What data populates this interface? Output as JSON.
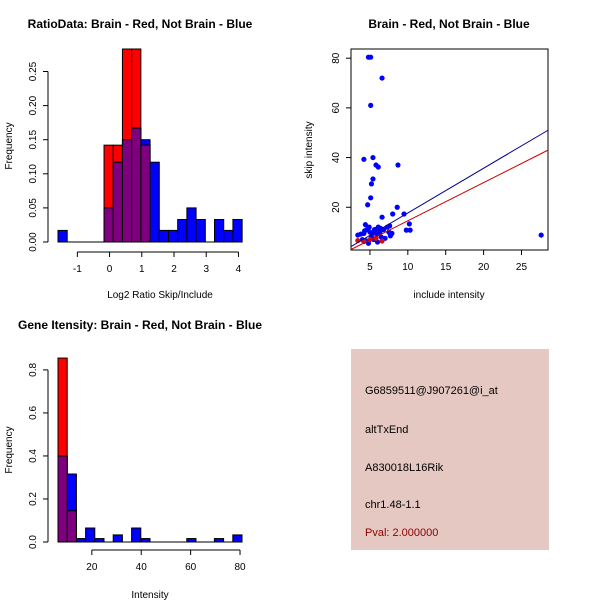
{
  "chart_data": [
    {
      "type": "bar",
      "title": "RatioData: Brain - Red, Not Brain - Blue",
      "xlabel": "Log2 Ratio Skip/Include",
      "ylabel": "Frequency",
      "xlim": [
        -1.6,
        4.11
      ],
      "ylim": [
        0,
        0.283
      ],
      "xticks": [
        -1,
        0,
        1,
        2,
        3,
        4
      ],
      "yticks": [
        0.0,
        0.05,
        0.1,
        0.15,
        0.2,
        0.25
      ],
      "ytick_labels": [
        "0.00",
        "0.05",
        "0.10",
        "0.15",
        "0.20",
        "0.25"
      ],
      "bin_start": -1.6,
      "bin_width": 0.2857,
      "series": [
        {
          "name": "Not Brain",
          "color": "#0000ff",
          "values": [
            0.017,
            0,
            0,
            0,
            0,
            0.05,
            0.117,
            0.15,
            0.167,
            0.15,
            0.117,
            0.017,
            0.017,
            0.033,
            0.05,
            0.033,
            0,
            0.033,
            0.017,
            0.033
          ]
        },
        {
          "name": "Brain",
          "color": "#ff0000",
          "values": [
            0,
            0,
            0,
            0,
            0,
            0.142,
            0.142,
            0.283,
            0.283,
            0.142,
            0,
            0,
            0,
            0,
            0,
            0,
            0,
            0,
            0,
            0
          ]
        }
      ],
      "overlap_color": "#7f007f"
    },
    {
      "type": "scatter",
      "title": "Brain - Red, Not Brain - Blue",
      "xlabel": "include intensity",
      "ylabel": "skip intensity",
      "xlim": [
        2.5,
        28.5
      ],
      "ylim": [
        2.8,
        83.7
      ],
      "xticks": [
        5,
        10,
        15,
        20,
        25
      ],
      "yticks": [
        20,
        40,
        60,
        80
      ],
      "series": [
        {
          "name": "Not Brain",
          "color": "#0000ff",
          "points": [
            [
              4.8,
              80.4
            ],
            [
              5.1,
              80.4
            ],
            [
              6.6,
              72
            ],
            [
              5.1,
              61
            ],
            [
              4.2,
              39.3
            ],
            [
              5.4,
              40
            ],
            [
              5.8,
              37
            ],
            [
              6.1,
              36.2
            ],
            [
              8.7,
              37
            ],
            [
              5.4,
              31.4
            ],
            [
              5.2,
              29.4
            ],
            [
              5.1,
              23.8
            ],
            [
              4.7,
              21
            ],
            [
              8.6,
              20
            ],
            [
              6.6,
              16
            ],
            [
              8.0,
              17.3
            ],
            [
              9.5,
              17.3
            ],
            [
              10.2,
              13.3
            ],
            [
              9.8,
              10.8
            ],
            [
              10.3,
              10.8
            ],
            [
              27.6,
              8.8
            ],
            [
              3.4,
              8.8
            ],
            [
              3.8,
              9.2
            ],
            [
              4.2,
              9.5
            ],
            [
              4.4,
              13
            ],
            [
              4.6,
              11
            ],
            [
              4.9,
              12
            ],
            [
              5.0,
              10
            ],
            [
              5.2,
              8
            ],
            [
              5.5,
              7
            ],
            [
              5.7,
              11
            ],
            [
              5.9,
              9
            ],
            [
              6.1,
              12
            ],
            [
              6.3,
              10
            ],
            [
              6.5,
              8
            ],
            [
              6.8,
              11
            ],
            [
              7.0,
              7.5
            ],
            [
              7.3,
              12
            ],
            [
              7.5,
              10
            ],
            [
              7.7,
              8.5
            ],
            [
              7.9,
              9.5
            ],
            [
              4.0,
              7
            ],
            [
              4.5,
              6.5
            ],
            [
              4.8,
              5.5
            ],
            [
              5.3,
              9.5
            ],
            [
              6.0,
              6
            ],
            [
              6.4,
              11.5
            ],
            [
              7.6,
              12.5
            ],
            [
              5.6,
              11
            ],
            [
              4.3,
              10.5
            ]
          ]
        },
        {
          "name": "Brain",
          "color": "#cc1111",
          "points": [
            [
              3.4,
              6.6
            ],
            [
              6.6,
              6.4
            ],
            [
              5.0,
              7
            ],
            [
              4.2,
              6.2
            ],
            [
              5.8,
              7.5
            ]
          ]
        }
      ],
      "fit_lines": [
        {
          "name": "Not Brain fit",
          "color": "#00008b",
          "from": [
            2.5,
            4.2
          ],
          "to": [
            28.5,
            51
          ]
        },
        {
          "name": "Brain fit",
          "color": "#cc0000",
          "from": [
            2.5,
            3.0
          ],
          "to": [
            28.5,
            43
          ]
        }
      ]
    },
    {
      "type": "bar",
      "title": "Gene Itensity: Brain - Red, Not Brain - Blue",
      "xlabel": "Intensity",
      "ylabel": "Frequency",
      "xlim": [
        6.3,
        80.8
      ],
      "ylim": [
        0,
        0.86
      ],
      "xticks": [
        20,
        40,
        60,
        80
      ],
      "yticks": [
        0.0,
        0.2,
        0.4,
        0.6,
        0.8
      ],
      "ytick_labels": [
        "0.0",
        "0.2",
        "0.4",
        "0.6",
        "0.8"
      ],
      "bin_start": 6.3,
      "bin_width": 3.725,
      "series": [
        {
          "name": "Not Brain",
          "color": "#0000ff",
          "values": [
            0.4,
            0.316,
            0.016,
            0.065,
            0.016,
            0,
            0.033,
            0,
            0.065,
            0.016,
            0,
            0,
            0,
            0,
            0.016,
            0,
            0,
            0.016,
            0,
            0.033
          ]
        },
        {
          "name": "Brain",
          "color": "#ff0000",
          "values": [
            0.855,
            0.145,
            0,
            0,
            0,
            0,
            0,
            0,
            0,
            0,
            0,
            0,
            0,
            0,
            0,
            0,
            0,
            0,
            0,
            0
          ]
        }
      ],
      "overlap_color": "#7f007f"
    }
  ],
  "info": {
    "probe_id": "G6859511@J907261@i_at",
    "event_type": "altTxEnd",
    "gene": "A830018L16Rik",
    "location": "chr1.48-1.1",
    "pval": "Pval: 2.000000",
    "pval_color": "#8b0000"
  }
}
